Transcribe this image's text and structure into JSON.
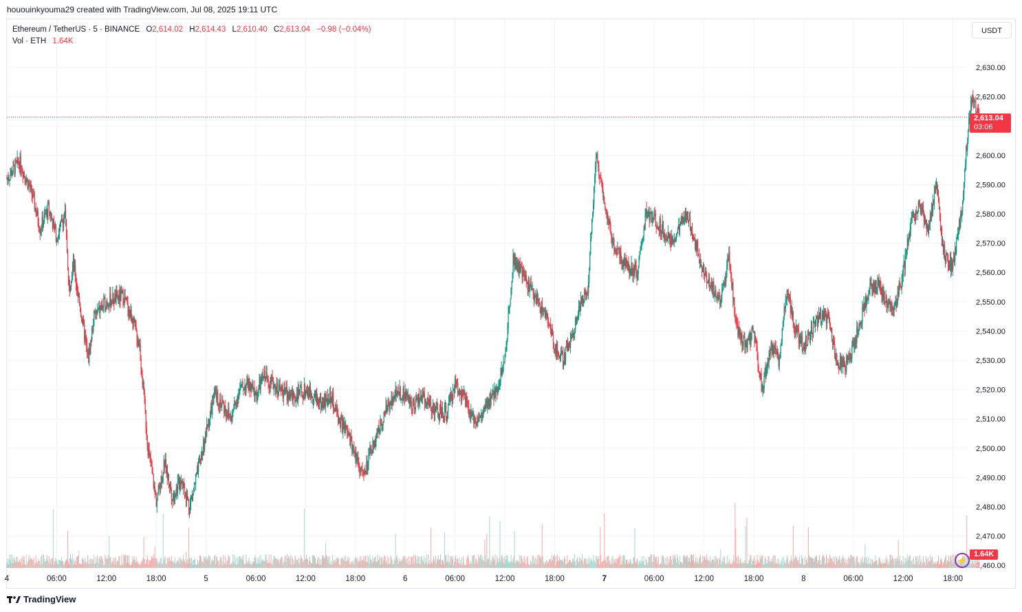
{
  "header": {
    "attribution": "hououinkyouma29 created with TradingView.com, Jul 08, 2025 19:11 UTC"
  },
  "legend": {
    "symbol": "Ethereum / TetherUS · 5 · BINANCE",
    "open_label": "O",
    "open": "2,614.02",
    "high_label": "H",
    "high": "2,614.43",
    "low_label": "L",
    "low": "2,610.40",
    "close_label": "C",
    "close": "2,613.04",
    "change": "−0.98 (−0.04%)",
    "vol_label": "Vol · ETH",
    "vol_value": "1.64K"
  },
  "currency": "USDT",
  "last_price_tag": {
    "price": "2,613.04",
    "countdown": "03:06"
  },
  "volume_tag": "1.64K",
  "footer": {
    "brand": "TradingView"
  },
  "colors": {
    "up": "#089981",
    "down": "#f23645",
    "up_vol": "#a7d7cf",
    "down_vol": "#f7a9a7",
    "grid": "#f0f3fa"
  },
  "chart_data": {
    "type": "candlestick",
    "symbol": "Ethereum / TetherUS",
    "interval": "5",
    "exchange": "BINANCE",
    "y_axis": {
      "ticks": [
        "2,630.00",
        "2,620.00",
        "2,610.00",
        "2,600.00",
        "2,590.00",
        "2,580.00",
        "2,570.00",
        "2,560.00",
        "2,550.00",
        "2,540.00",
        "2,530.00",
        "2,520.00",
        "2,510.00",
        "2,500.00",
        "2,490.00",
        "2,480.00",
        "2,470.00",
        "2,460.00"
      ],
      "tick_values": [
        2630,
        2620,
        2610,
        2600,
        2590,
        2580,
        2570,
        2560,
        2550,
        2540,
        2530,
        2520,
        2510,
        2500,
        2490,
        2480,
        2470,
        2460
      ],
      "range": [
        2458,
        2638
      ]
    },
    "x_axis": {
      "ticks": [
        "4",
        "06:00",
        "12:00",
        "18:00",
        "5",
        "06:00",
        "12:00",
        "18:00",
        "6",
        "06:00",
        "12:00",
        "18:00",
        "7",
        "06:00",
        "12:00",
        "18:00",
        "8",
        "06:00",
        "12:00",
        "18:00"
      ],
      "tick_hours": [
        0,
        6,
        12,
        18,
        24,
        30,
        36,
        42,
        48,
        54,
        60,
        66,
        72,
        78,
        84,
        90,
        96,
        102,
        108,
        114
      ],
      "bold_ticks": [
        "7"
      ],
      "range_hours": [
        0,
        117.2
      ]
    },
    "last_price": 2613.04,
    "price_path": [
      [
        0,
        2592
      ],
      [
        1.5,
        2598
      ],
      [
        3,
        2587
      ],
      [
        4,
        2575
      ],
      [
        5,
        2582
      ],
      [
        6,
        2572
      ],
      [
        7,
        2580
      ],
      [
        7.5,
        2555
      ],
      [
        8,
        2563
      ],
      [
        9,
        2545
      ],
      [
        9.8,
        2530
      ],
      [
        10.5,
        2545
      ],
      [
        12,
        2550
      ],
      [
        13,
        2551
      ],
      [
        14,
        2552
      ],
      [
        15,
        2545
      ],
      [
        16,
        2535
      ],
      [
        17,
        2500
      ],
      [
        18,
        2482
      ],
      [
        19,
        2495
      ],
      [
        20,
        2483
      ],
      [
        21,
        2490
      ],
      [
        22,
        2480
      ],
      [
        23,
        2492
      ],
      [
        24,
        2505
      ],
      [
        25,
        2518
      ],
      [
        26,
        2515
      ],
      [
        27,
        2510
      ],
      [
        28,
        2520
      ],
      [
        29,
        2522
      ],
      [
        30,
        2518
      ],
      [
        31,
        2525
      ],
      [
        32,
        2522
      ],
      [
        33,
        2520
      ],
      [
        34,
        2518
      ],
      [
        35,
        2518
      ],
      [
        36,
        2520
      ],
      [
        37,
        2518
      ],
      [
        38,
        2515
      ],
      [
        39,
        2518
      ],
      [
        40,
        2510
      ],
      [
        41,
        2505
      ],
      [
        42,
        2498
      ],
      [
        43,
        2490
      ],
      [
        44,
        2500
      ],
      [
        45,
        2508
      ],
      [
        46,
        2515
      ],
      [
        47,
        2520
      ],
      [
        48,
        2518
      ],
      [
        49,
        2515
      ],
      [
        50,
        2518
      ],
      [
        51,
        2515
      ],
      [
        52,
        2512
      ],
      [
        53,
        2512
      ],
      [
        54,
        2522
      ],
      [
        55,
        2518
      ],
      [
        56,
        2510
      ],
      [
        57,
        2510
      ],
      [
        58,
        2515
      ],
      [
        59,
        2520
      ],
      [
        60,
        2530
      ],
      [
        61,
        2565
      ],
      [
        62,
        2560
      ],
      [
        63,
        2555
      ],
      [
        64,
        2550
      ],
      [
        65,
        2545
      ],
      [
        66,
        2535
      ],
      [
        67,
        2530
      ],
      [
        68,
        2538
      ],
      [
        69,
        2548
      ],
      [
        70,
        2555
      ],
      [
        71,
        2600
      ],
      [
        72,
        2585
      ],
      [
        73,
        2570
      ],
      [
        74,
        2565
      ],
      [
        75,
        2562
      ],
      [
        76,
        2560
      ],
      [
        77,
        2580
      ],
      [
        78,
        2578
      ],
      [
        79,
        2575
      ],
      [
        80,
        2570
      ],
      [
        81,
        2575
      ],
      [
        82,
        2580
      ],
      [
        83,
        2570
      ],
      [
        84,
        2560
      ],
      [
        85,
        2555
      ],
      [
        86,
        2550
      ],
      [
        87,
        2565
      ],
      [
        88,
        2540
      ],
      [
        89,
        2535
      ],
      [
        90,
        2540
      ],
      [
        91,
        2520
      ],
      [
        92,
        2535
      ],
      [
        93,
        2530
      ],
      [
        94,
        2555
      ],
      [
        95,
        2540
      ],
      [
        96,
        2535
      ],
      [
        97,
        2540
      ],
      [
        98,
        2545
      ],
      [
        99,
        2545
      ],
      [
        100,
        2530
      ],
      [
        101,
        2528
      ],
      [
        102,
        2535
      ],
      [
        103,
        2545
      ],
      [
        104,
        2555
      ],
      [
        105,
        2555
      ],
      [
        106,
        2550
      ],
      [
        107,
        2548
      ],
      [
        108,
        2560
      ],
      [
        109,
        2578
      ],
      [
        110,
        2583
      ],
      [
        111,
        2575
      ],
      [
        112,
        2590
      ],
      [
        112.5,
        2575
      ],
      [
        113,
        2565
      ],
      [
        114,
        2562
      ],
      [
        115,
        2580
      ],
      [
        115.7,
        2605
      ],
      [
        116.3,
        2620
      ],
      [
        117,
        2615
      ],
      [
        117.2,
        2613
      ]
    ]
  }
}
